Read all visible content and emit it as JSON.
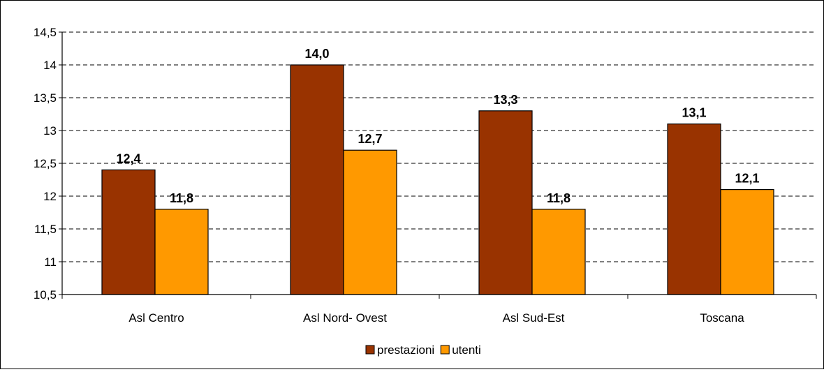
{
  "chart_data": {
    "type": "bar",
    "categories": [
      "Asl Centro",
      "Asl Nord- Ovest",
      "Asl Sud-Est",
      "Toscana"
    ],
    "series": [
      {
        "name": "prestazioni",
        "values": [
          12.4,
          14.0,
          13.3,
          13.1
        ],
        "labels": [
          "12,4",
          "14,0",
          "13,3",
          "13,1"
        ],
        "color": "#993300"
      },
      {
        "name": "utenti",
        "values": [
          11.8,
          12.7,
          11.8,
          12.1
        ],
        "labels": [
          "11,8",
          "12,7",
          "11,8",
          "12,1"
        ],
        "color": "#ff9900"
      }
    ],
    "y_ticks": [
      {
        "value": 10.5,
        "label": "10,5"
      },
      {
        "value": 11,
        "label": "11"
      },
      {
        "value": 11.5,
        "label": "11,5"
      },
      {
        "value": 12,
        "label": "12"
      },
      {
        "value": 12.5,
        "label": "12,5"
      },
      {
        "value": 13,
        "label": "13"
      },
      {
        "value": 13.5,
        "label": "13,5"
      },
      {
        "value": 14,
        "label": "14"
      },
      {
        "value": 14.5,
        "label": "14,5"
      }
    ],
    "ylim": [
      10.5,
      14.5
    ],
    "grid": true,
    "legend_position": "bottom"
  }
}
